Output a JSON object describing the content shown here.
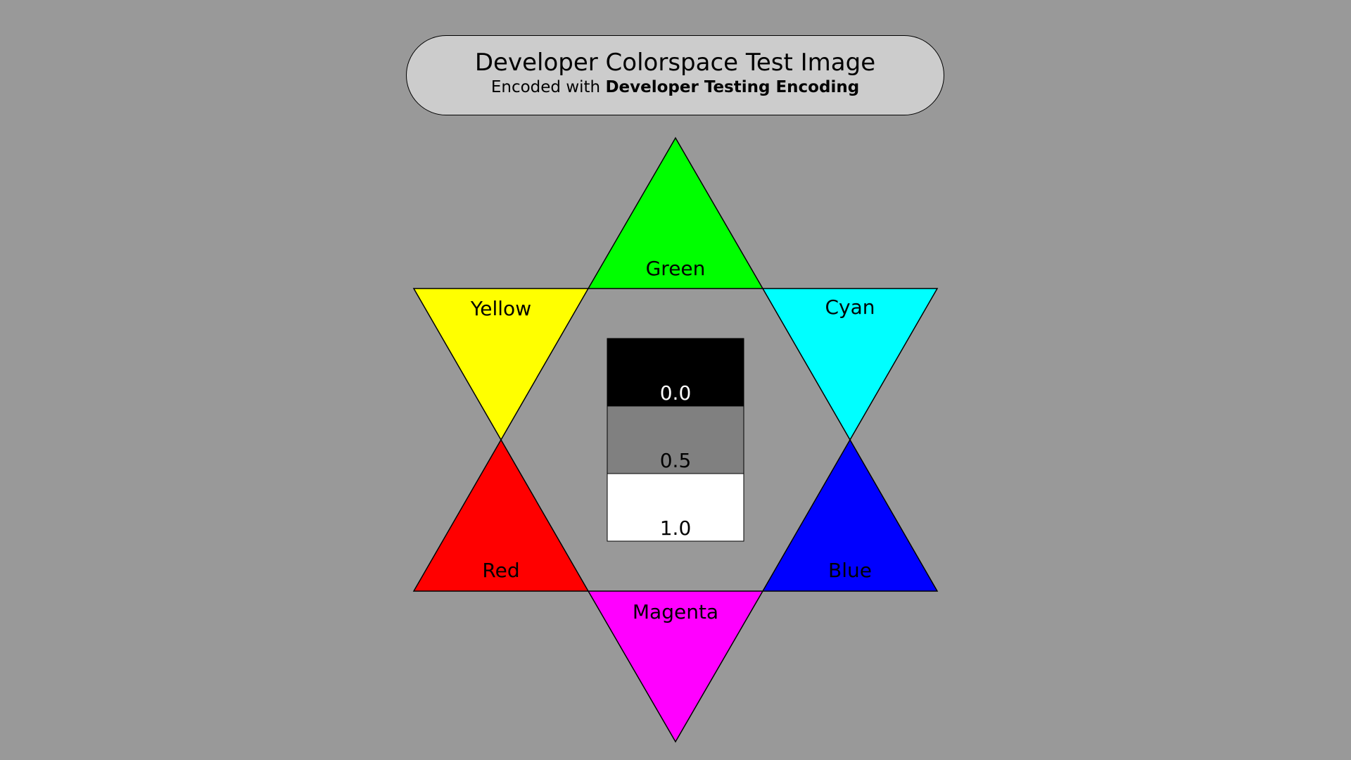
{
  "title": {
    "main": "Developer Colorspace Test Image",
    "sub_prefix": "Encoded with",
    "sub_bold": "Developer Testing Encoding"
  },
  "triangles": [
    {
      "key": "green",
      "label": "Green",
      "color": "#00ff00"
    },
    {
      "key": "yellow",
      "label": "Yellow",
      "color": "#ffff00"
    },
    {
      "key": "cyan",
      "label": "Cyan",
      "color": "#00ffff"
    },
    {
      "key": "red",
      "label": "Red",
      "color": "#ff0000"
    },
    {
      "key": "blue",
      "label": "Blue",
      "color": "#0000ff"
    },
    {
      "key": "magenta",
      "label": "Magenta",
      "color": "#ff00ff"
    }
  ],
  "grayscale": [
    {
      "label": "0.0",
      "color": "#000000",
      "text_color": "#ffffff"
    },
    {
      "label": "0.5",
      "color": "#808080",
      "text_color": "#000000"
    },
    {
      "label": "1.0",
      "color": "#ffffff",
      "text_color": "#000000"
    }
  ],
  "background_color": "#999999"
}
